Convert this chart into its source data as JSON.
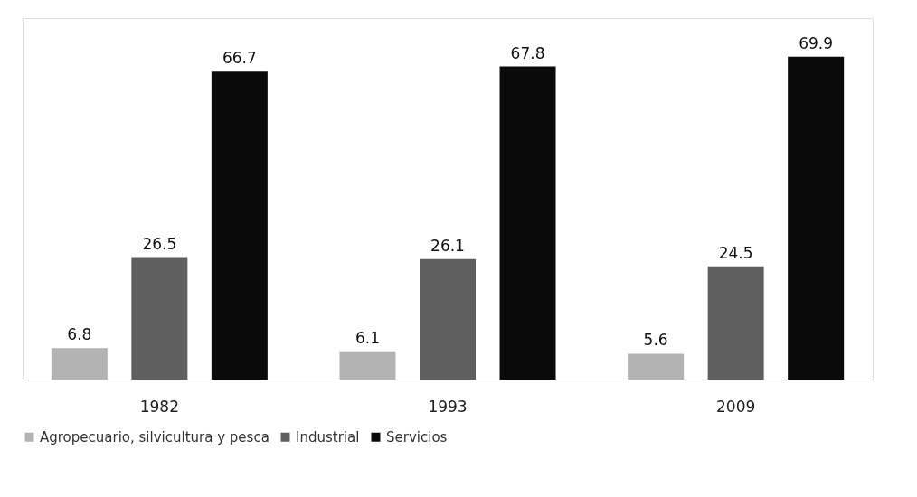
{
  "chart_data": {
    "type": "bar",
    "categories": [
      "1982",
      "1993",
      "2009"
    ],
    "series": [
      {
        "name": "Agropecuario, silvicultura y pesca",
        "color": "#b3b3b3",
        "values": [
          6.8,
          6.1,
          5.6
        ]
      },
      {
        "name": "Industrial",
        "color": "#5f5f5f",
        "values": [
          26.5,
          26.1,
          24.5
        ]
      },
      {
        "name": "Servicios",
        "color": "#0a0a0a",
        "values": [
          66.7,
          67.8,
          69.9
        ]
      }
    ],
    "data_labels": true,
    "legend": "bottom",
    "grid": false
  }
}
